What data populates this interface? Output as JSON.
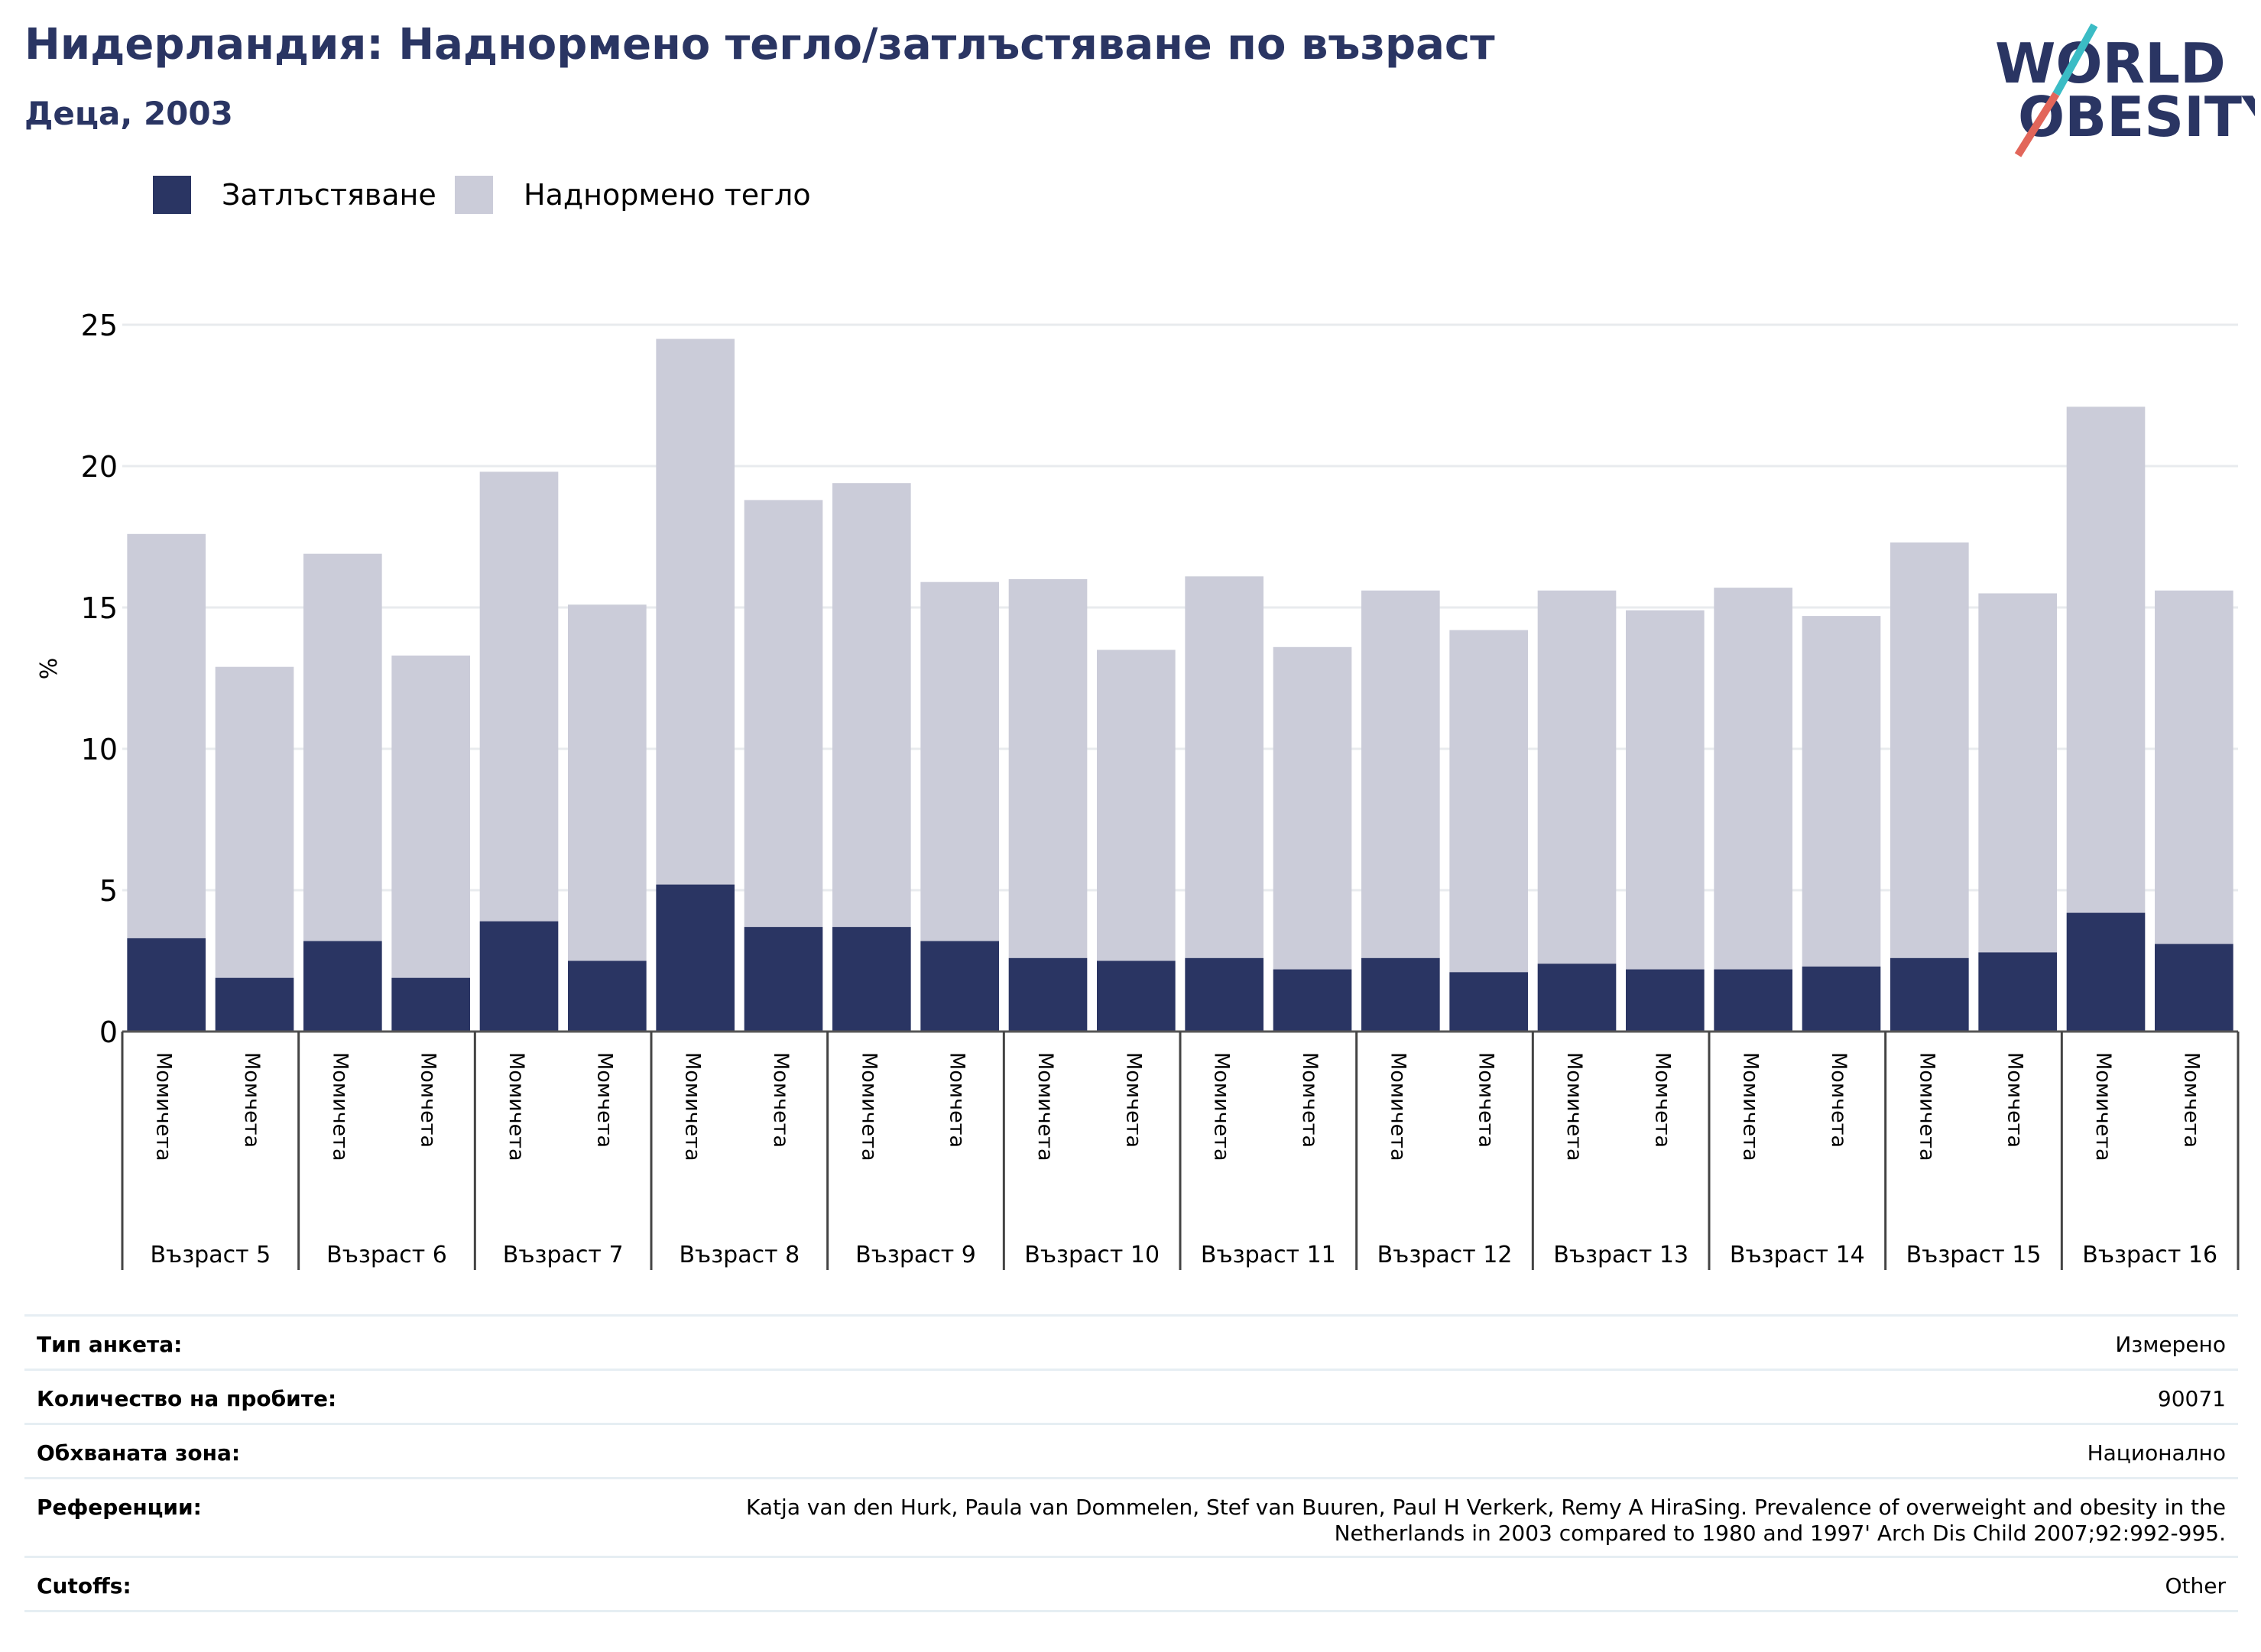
{
  "header": {
    "title": "Нидерландия: Наднормено тегло/затлъстяване по възраст",
    "subtitle": "Деца, 2003"
  },
  "logo": {
    "line1": "WORLD",
    "line2": "OBESITY"
  },
  "legend": [
    {
      "label": "Затлъстяване",
      "color": "#2a3563"
    },
    {
      "label": "Наднормено тегло",
      "color": "#cbccd9"
    }
  ],
  "chart_data": {
    "type": "bar",
    "stacked": true,
    "ylabel": "%",
    "ylim": [
      0,
      25
    ],
    "yticks": [
      0,
      5,
      10,
      15,
      20,
      25
    ],
    "grid": true,
    "legend_position": "top-left",
    "groups": [
      "Възраст 5",
      "Възраст 6",
      "Възраст 7",
      "Възраст 8",
      "Възраст 9",
      "Възраст 10",
      "Възраст 11",
      "Възраст 12",
      "Възраст 13",
      "Възраст 14",
      "Възраст 15",
      "Възраст 16"
    ],
    "subcategories": [
      "Момичета",
      "Момчета"
    ],
    "categories": [
      "Момичета",
      "Момчета",
      "Момичета",
      "Момчета",
      "Момичета",
      "Момчета",
      "Момичета",
      "Момчета",
      "Момичета",
      "Момчета",
      "Момичета",
      "Момчета",
      "Момичета",
      "Момчета",
      "Момичета",
      "Момчета",
      "Момичета",
      "Момчета",
      "Момичета",
      "Момчета",
      "Момичета",
      "Момчета",
      "Момичета",
      "Момчета"
    ],
    "series": [
      {
        "name": "Затлъстяване",
        "color": "#2a3563",
        "values": [
          3.3,
          1.9,
          3.2,
          1.9,
          3.9,
          2.5,
          5.2,
          3.7,
          3.7,
          3.2,
          2.6,
          2.5,
          2.6,
          2.2,
          2.6,
          2.1,
          2.4,
          2.2,
          2.2,
          2.3,
          2.6,
          2.8,
          4.2,
          3.1
        ]
      },
      {
        "name": "Наднормено тегло",
        "color": "#cbccd9",
        "values": [
          14.3,
          11.0,
          13.7,
          11.4,
          15.9,
          12.6,
          19.3,
          15.1,
          15.7,
          12.7,
          13.4,
          11.0,
          13.5,
          11.4,
          13.0,
          12.1,
          13.2,
          12.7,
          13.5,
          12.4,
          14.7,
          12.7,
          17.9,
          12.5
        ]
      }
    ]
  },
  "meta": {
    "rows": [
      {
        "label": "Тип анкета:",
        "value": "Измерено"
      },
      {
        "label": "Количество на пробите:",
        "value": "90071"
      },
      {
        "label": "Обхваната зона:",
        "value": "Национално"
      },
      {
        "label": "Референции:",
        "value_line1": "Katja van den Hurk, Paula van Dommelen, Stef van Buuren, Paul H Verkerk, Remy A HiraSing. Prevalence of overweight and obesity in the",
        "value_line2": "Netherlands in 2003 compared to 1980 and 1997' Arch Dis Child 2007;92:992-995."
      },
      {
        "label": "Cutoffs:",
        "value": "Other"
      }
    ]
  }
}
